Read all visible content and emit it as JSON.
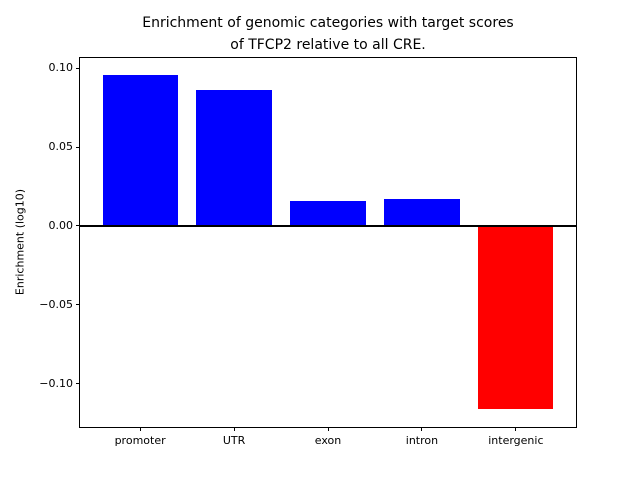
{
  "chart_data": {
    "type": "bar",
    "title_line1": "Enrichment of genomic categories with target scores",
    "title_line2": "of TFCP2 relative to all CRE.",
    "title": "Enrichment of genomic categories with target scores\nof TFCP2 relative to all CRE.",
    "xlabel": "",
    "ylabel": "Enrichment (log10)",
    "categories": [
      "promoter",
      "UTR",
      "exon",
      "intron",
      "intergenic"
    ],
    "values": [
      0.096,
      0.086,
      0.016,
      0.017,
      -0.116
    ],
    "bar_colors": [
      "#0000ff",
      "#0000ff",
      "#0000ff",
      "#0000ff",
      "#ff0000"
    ],
    "positive_color": "#0000ff",
    "negative_color": "#ff0000",
    "ylim": [
      -0.1275,
      0.1065
    ],
    "yticks": [
      0.1,
      0.05,
      0.0,
      -0.05,
      -0.1
    ],
    "ytick_labels": [
      "0.10",
      "0.05",
      "0.00",
      "−0.05",
      "−0.10"
    ],
    "grid": false,
    "legend": null,
    "zero_line": true,
    "axis_color": "#000000",
    "background_color": "#ffffff"
  }
}
